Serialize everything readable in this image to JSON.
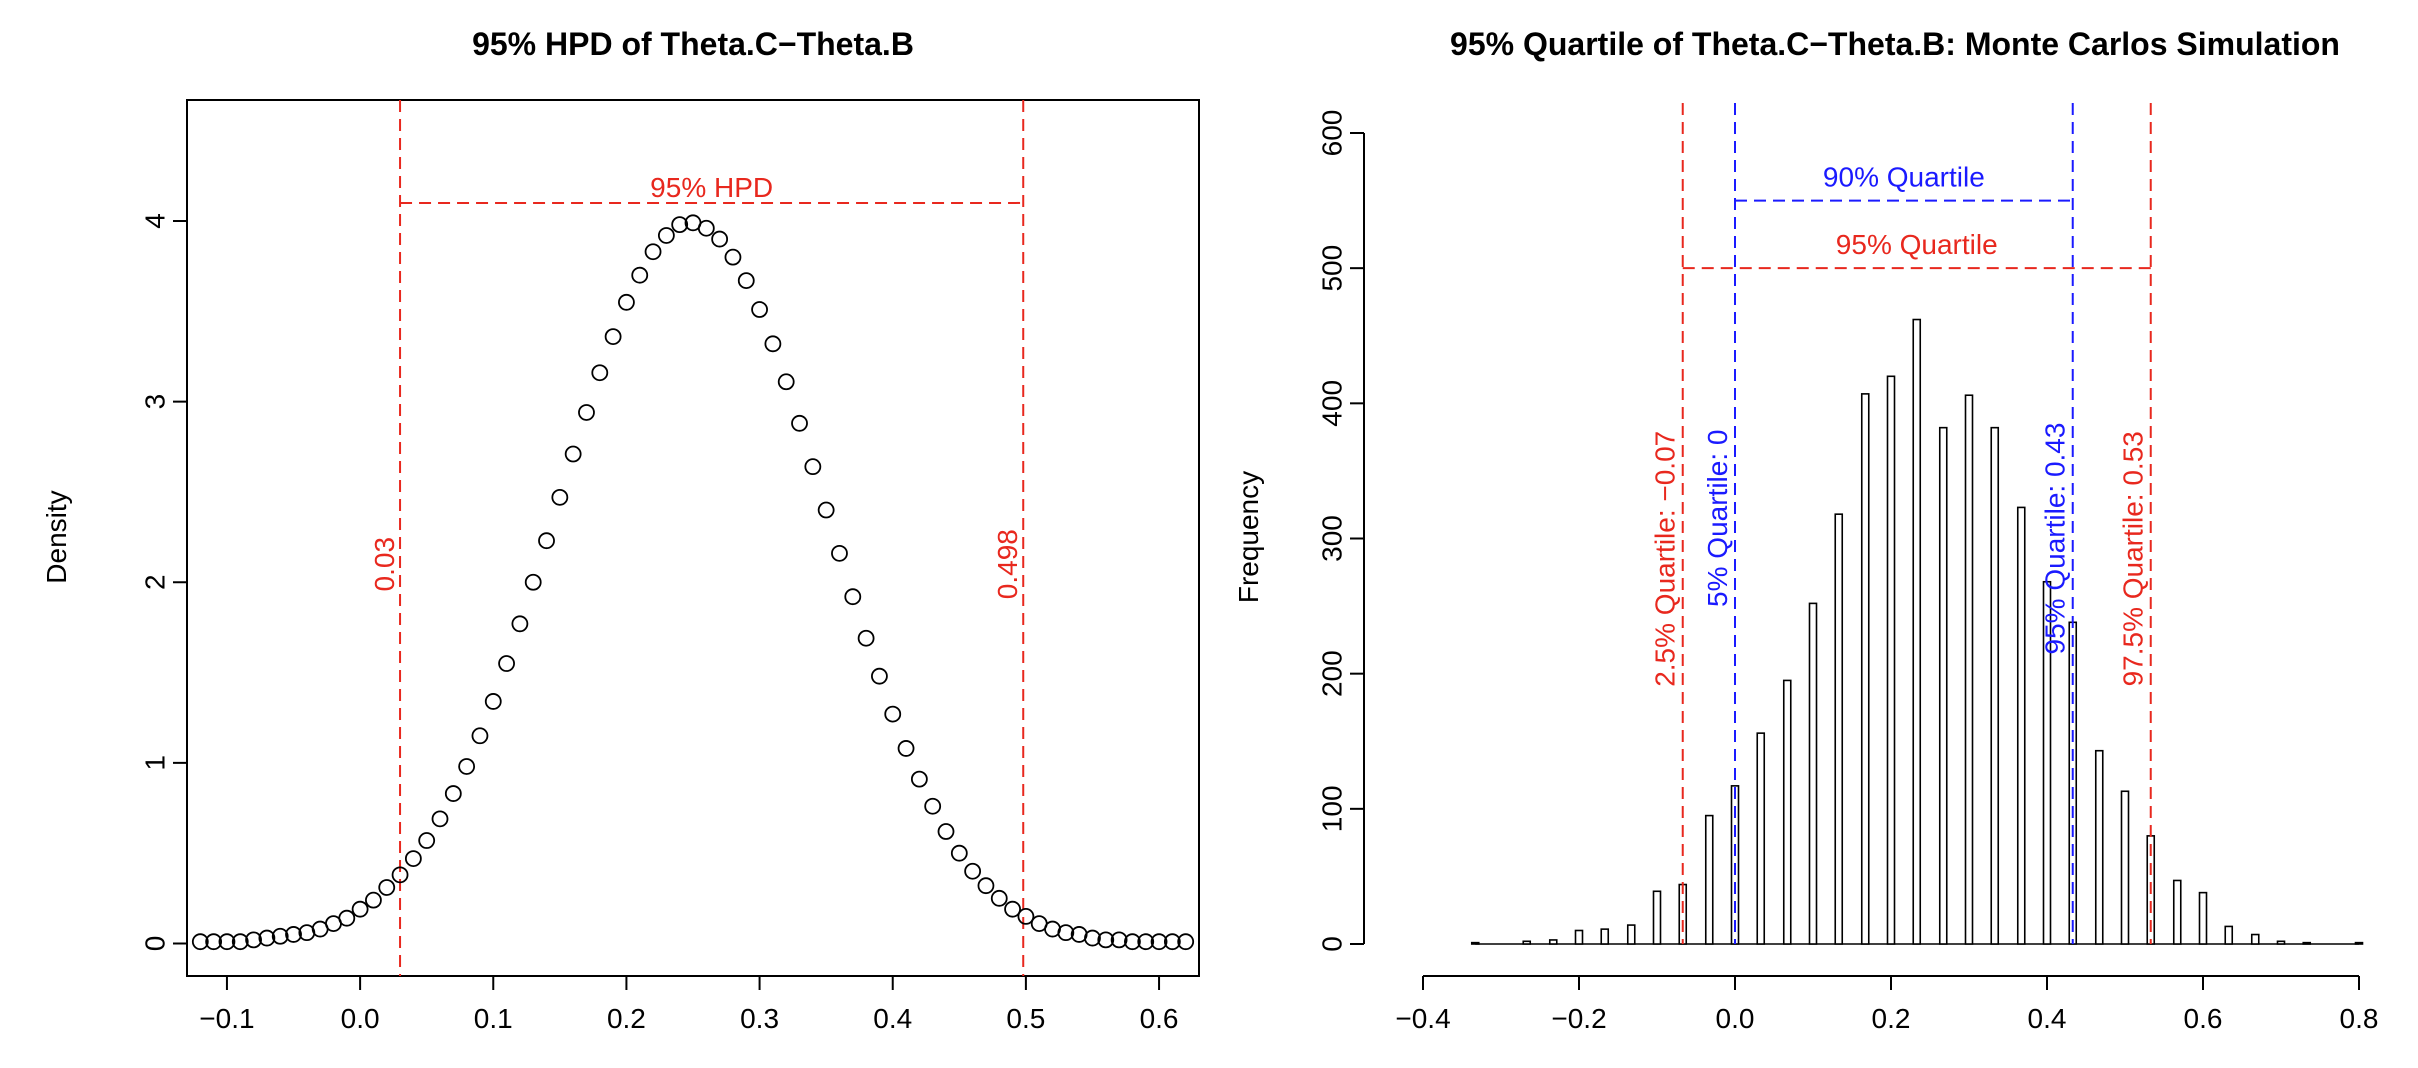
{
  "chart_data": [
    {
      "type": "scatter",
      "title": "95% HPD of Theta.C−Theta.B",
      "xlabel": "",
      "ylabel": "Density",
      "xlim": [
        -0.13,
        0.63
      ],
      "ylim": [
        -0.18,
        4.67
      ],
      "x_ticks": [
        -0.1,
        0.0,
        0.1,
        0.2,
        0.3,
        0.4,
        0.5,
        0.6
      ],
      "x_tick_labels": [
        "−0.1",
        "0.0",
        "0.1",
        "0.2",
        "0.3",
        "0.4",
        "0.5",
        "0.6"
      ],
      "y_ticks": [
        0,
        1,
        2,
        3,
        4
      ],
      "y_tick_labels": [
        "0",
        "1",
        "2",
        "3",
        "4"
      ],
      "grid": false,
      "point_style": "open-circle",
      "points": {
        "x": [
          -0.12,
          -0.11,
          -0.1,
          -0.09,
          -0.08,
          -0.07,
          -0.06,
          -0.05,
          -0.04,
          -0.03,
          -0.02,
          -0.01,
          0.0,
          0.01,
          0.02,
          0.03,
          0.04,
          0.05,
          0.06,
          0.07,
          0.08,
          0.09,
          0.1,
          0.11,
          0.12,
          0.13,
          0.14,
          0.15,
          0.16,
          0.17,
          0.18,
          0.19,
          0.2,
          0.21,
          0.22,
          0.23,
          0.24,
          0.25,
          0.26,
          0.27,
          0.28,
          0.29,
          0.3,
          0.31,
          0.32,
          0.33,
          0.34,
          0.35,
          0.36,
          0.37,
          0.38,
          0.39,
          0.4,
          0.41,
          0.42,
          0.43,
          0.44,
          0.45,
          0.46,
          0.47,
          0.48,
          0.49,
          0.5,
          0.51,
          0.52,
          0.53,
          0.54,
          0.55,
          0.56,
          0.57,
          0.58,
          0.59,
          0.6,
          0.61,
          0.62
        ],
        "y": [
          0.01,
          0.01,
          0.01,
          0.01,
          0.02,
          0.03,
          0.04,
          0.05,
          0.06,
          0.08,
          0.11,
          0.14,
          0.19,
          0.24,
          0.31,
          0.38,
          0.47,
          0.57,
          0.69,
          0.83,
          0.98,
          1.15,
          1.34,
          1.55,
          1.77,
          2.0,
          2.23,
          2.47,
          2.71,
          2.94,
          3.16,
          3.36,
          3.55,
          3.7,
          3.83,
          3.92,
          3.98,
          3.99,
          3.96,
          3.9,
          3.8,
          3.67,
          3.51,
          3.32,
          3.11,
          2.88,
          2.64,
          2.4,
          2.16,
          1.92,
          1.69,
          1.48,
          1.27,
          1.08,
          0.91,
          0.76,
          0.62,
          0.5,
          0.4,
          0.32,
          0.25,
          0.19,
          0.15,
          0.11,
          0.08,
          0.06,
          0.05,
          0.03,
          0.02,
          0.02,
          0.01,
          0.01,
          0.01,
          0.01,
          0.01
        ]
      },
      "annotations": [
        {
          "type": "vline",
          "x": 0.03,
          "color": "#e8281e",
          "dash": true,
          "label": "0.03",
          "label_y": 2.1
        },
        {
          "type": "vline",
          "x": 0.498,
          "color": "#e8281e",
          "dash": true,
          "label": "0.498",
          "label_y": 2.1
        },
        {
          "type": "hline",
          "x1": 0.03,
          "x2": 0.498,
          "y": 4.1,
          "color": "#e8281e",
          "dash": true,
          "label": "95% HPD"
        }
      ]
    },
    {
      "type": "bar",
      "title": "95% Quartile of Theta.C−Theta.B: Monte Carlos Simulation",
      "xlabel": "",
      "ylabel": "Frequency",
      "xlim": [
        -0.4,
        0.8
      ],
      "ylim": [
        0,
        600
      ],
      "x_ticks": [
        -0.4,
        -0.2,
        0.0,
        0.2,
        0.4,
        0.6,
        0.8
      ],
      "x_tick_labels": [
        "−0.4",
        "−0.2",
        "0.0",
        "0.2",
        "0.4",
        "0.6",
        "0.8"
      ],
      "y_ticks": [
        0,
        100,
        200,
        300,
        400,
        500,
        600
      ],
      "y_tick_labels": [
        "0",
        "100",
        "200",
        "300",
        "400",
        "500",
        "600"
      ],
      "grid": false,
      "bars": {
        "x": [
          -0.333,
          -0.267,
          -0.233,
          -0.2,
          -0.167,
          -0.133,
          -0.1,
          -0.067,
          -0.033,
          0.0,
          0.033,
          0.067,
          0.1,
          0.133,
          0.167,
          0.2,
          0.233,
          0.267,
          0.3,
          0.333,
          0.367,
          0.4,
          0.433,
          0.467,
          0.5,
          0.533,
          0.567,
          0.6,
          0.633,
          0.667,
          0.7,
          0.733,
          0.8
        ],
        "values": [
          1,
          2,
          3,
          10,
          11,
          14,
          39,
          44,
          95,
          117,
          156,
          195,
          252,
          318,
          407,
          420,
          462,
          382,
          406,
          382,
          323,
          268,
          238,
          143,
          113,
          80,
          47,
          38,
          13,
          7,
          2,
          1,
          1
        ]
      },
      "annotations": [
        {
          "type": "vline",
          "x": -0.067,
          "color": "#e8281e",
          "dash": true,
          "label": "2.5% Quartile: −0.07",
          "label_y": 285
        },
        {
          "type": "vline",
          "x": 0.0,
          "color": "#1a1aff",
          "dash": true,
          "label": "5% Quartile: 0",
          "label_y": 315
        },
        {
          "type": "vline",
          "x": 0.433,
          "color": "#1a1aff",
          "dash": true,
          "label": "95% Quartile: 0.43",
          "label_y": 300
        },
        {
          "type": "vline",
          "x": 0.533,
          "color": "#e8281e",
          "dash": true,
          "label": "97.5% Quartile: 0.53",
          "label_y": 285
        },
        {
          "type": "hline",
          "x1": 0.0,
          "x2": 0.433,
          "y": 550,
          "color": "#1a1aff",
          "dash": true,
          "label": "90% Quartile"
        },
        {
          "type": "hline",
          "x1": -0.067,
          "x2": 0.533,
          "y": 500,
          "color": "#e8281e",
          "dash": true,
          "label": "95% Quartile"
        }
      ]
    }
  ]
}
